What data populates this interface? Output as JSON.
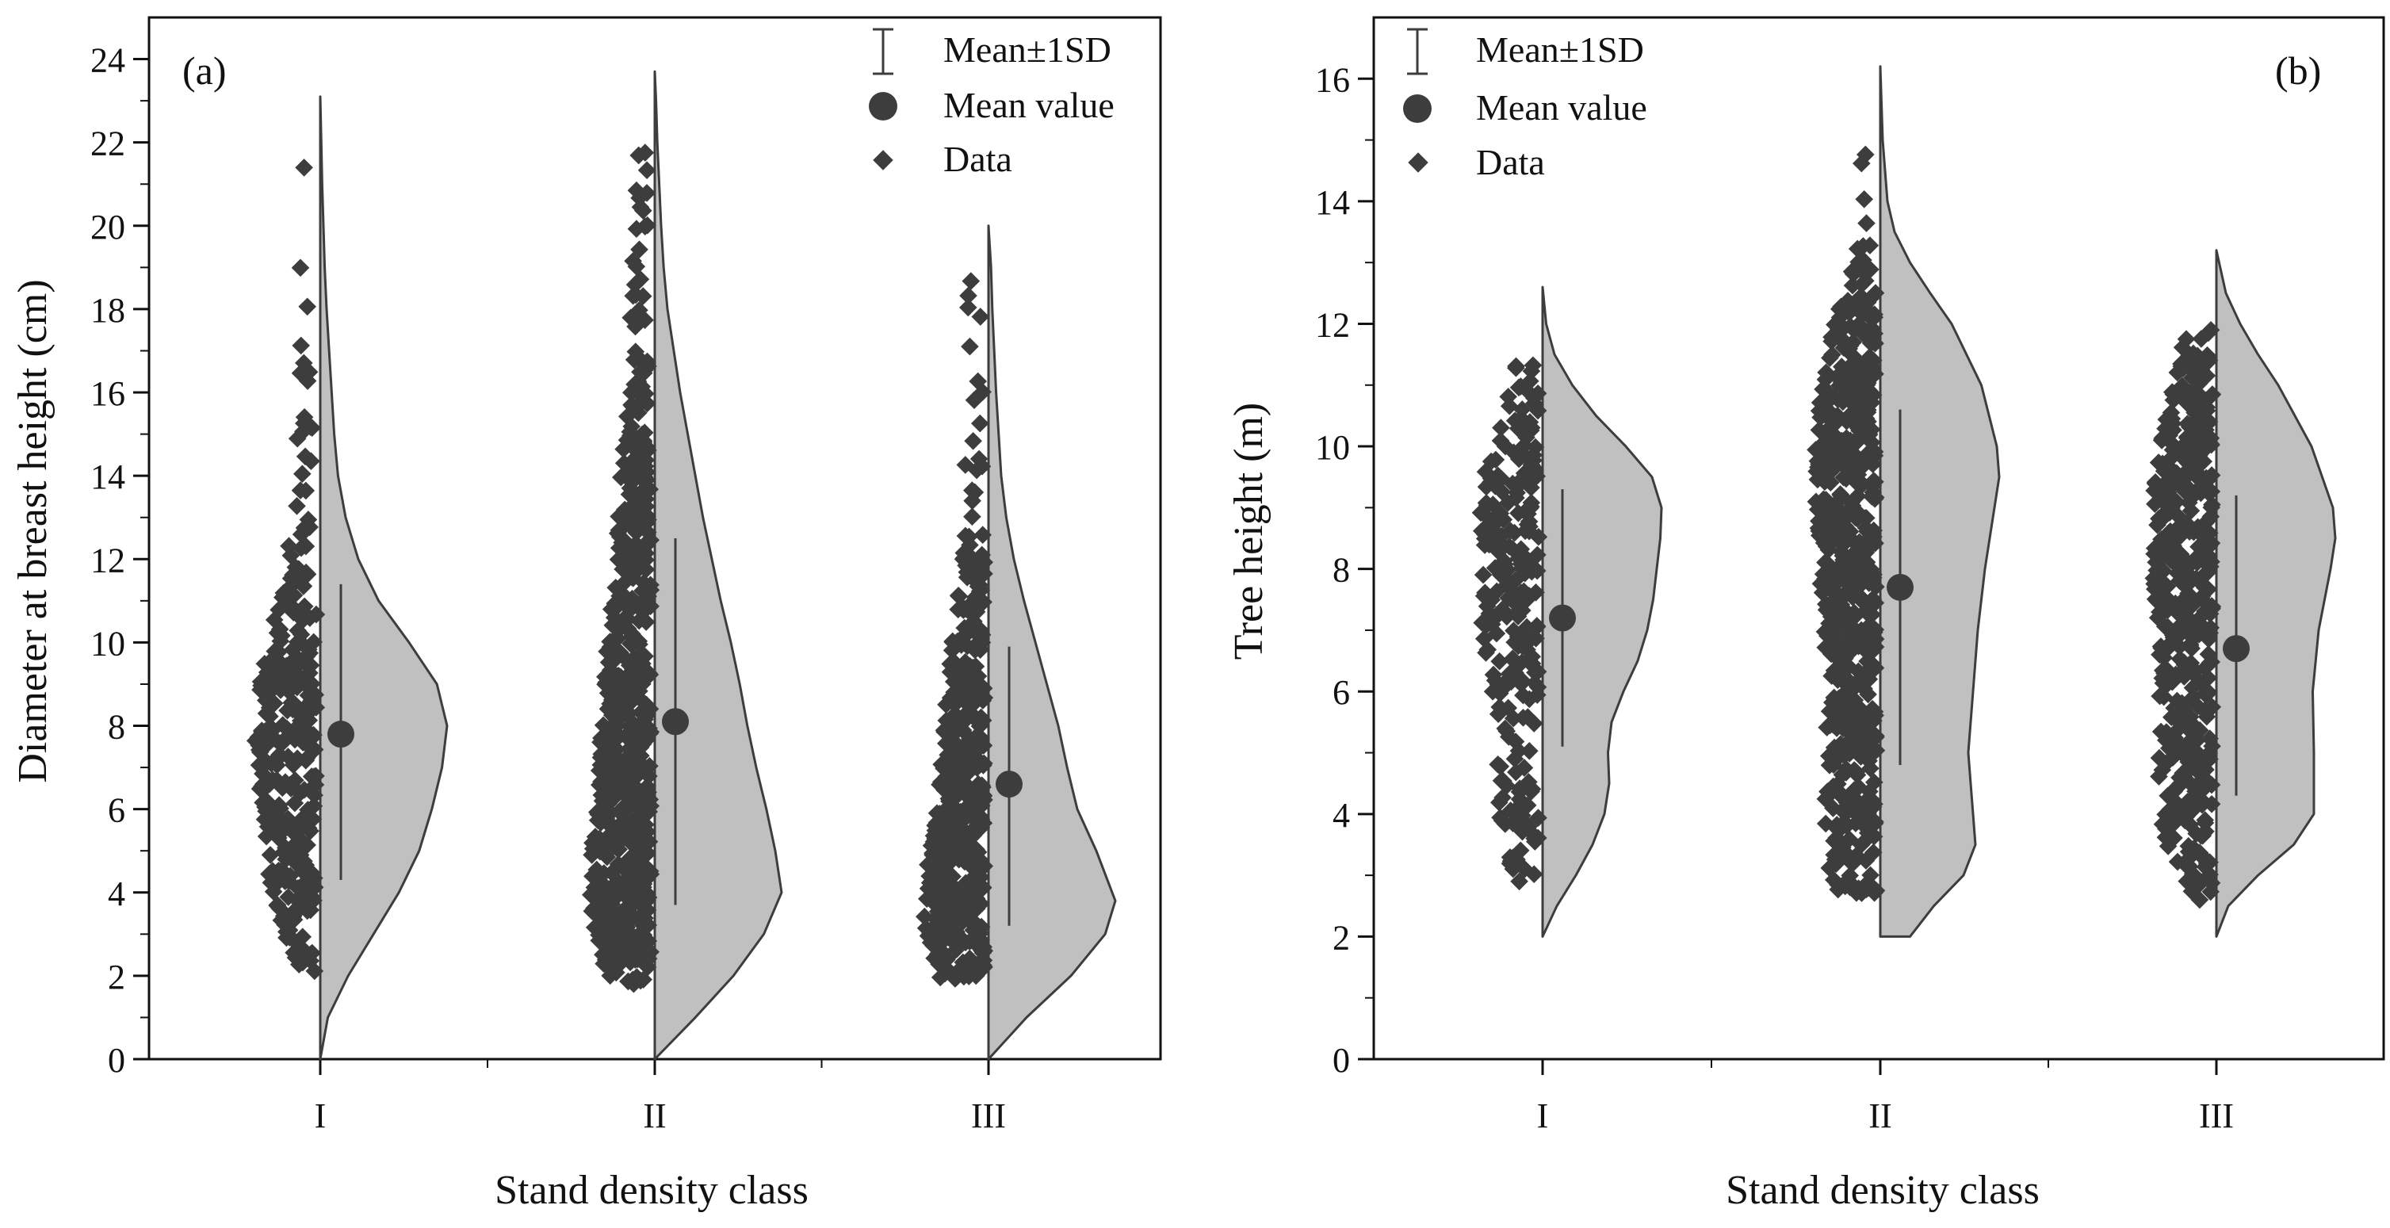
{
  "colors": {
    "point": "#3d3d3d",
    "violin_fill": "#c0c0c0",
    "violin_stroke": "#3d3d3d",
    "axis": "#111111",
    "background": "#ffffff"
  },
  "legend_labels": {
    "sd": "Mean±1SD",
    "mean": "Mean value",
    "data": "Data"
  },
  "chart_data": [
    {
      "type": "half-violin",
      "panel_label": "(a)",
      "title": "",
      "xlabel": "Stand density class",
      "ylabel": "Diameter at breast height (cm)",
      "ylim": [
        0,
        25
      ],
      "yticks": [
        0,
        2,
        4,
        6,
        8,
        10,
        12,
        14,
        16,
        18,
        20,
        22,
        24
      ],
      "grid": false,
      "legend_position": "top-right",
      "categories": [
        "I",
        "II",
        "III"
      ],
      "series": [
        {
          "name": "I",
          "mean": 7.8,
          "sd_low": 4.3,
          "sd_high": 11.4,
          "data_min": 2.1,
          "data_max": 21.7,
          "n_points": 320,
          "violin_min": 0,
          "violin_max": 23.1,
          "density": [
            [
              0,
              0.0
            ],
            [
              1,
              0.06
            ],
            [
              2,
              0.22
            ],
            [
              3,
              0.42
            ],
            [
              4,
              0.62
            ],
            [
              5,
              0.78
            ],
            [
              6,
              0.88
            ],
            [
              7,
              0.96
            ],
            [
              8,
              1.0
            ],
            [
              9,
              0.92
            ],
            [
              10,
              0.7
            ],
            [
              11,
              0.46
            ],
            [
              12,
              0.3
            ],
            [
              13,
              0.2
            ],
            [
              14,
              0.14
            ],
            [
              15,
              0.11
            ],
            [
              16,
              0.09
            ],
            [
              17,
              0.07
            ],
            [
              18,
              0.05
            ],
            [
              19,
              0.035
            ],
            [
              20,
              0.025
            ],
            [
              21,
              0.015
            ],
            [
              22,
              0.008
            ],
            [
              23.1,
              0.0
            ]
          ]
        },
        {
          "name": "II",
          "mean": 8.1,
          "sd_low": 3.7,
          "sd_high": 12.5,
          "data_min": 1.8,
          "data_max": 21.9,
          "n_points": 640,
          "violin_min": 0,
          "violin_max": 23.7,
          "density": [
            [
              0,
              0.0
            ],
            [
              1,
              0.32
            ],
            [
              2,
              0.62
            ],
            [
              3,
              0.86
            ],
            [
              4,
              1.0
            ],
            [
              5,
              0.95
            ],
            [
              6,
              0.88
            ],
            [
              7,
              0.8
            ],
            [
              8,
              0.73
            ],
            [
              9,
              0.67
            ],
            [
              10,
              0.6
            ],
            [
              11,
              0.52
            ],
            [
              12,
              0.45
            ],
            [
              13,
              0.38
            ],
            [
              14,
              0.32
            ],
            [
              15,
              0.26
            ],
            [
              16,
              0.2
            ],
            [
              17,
              0.15
            ],
            [
              18,
              0.1
            ],
            [
              19,
              0.07
            ],
            [
              20,
              0.05
            ],
            [
              21,
              0.035
            ],
            [
              22,
              0.02
            ],
            [
              23,
              0.01
            ],
            [
              23.7,
              0.0
            ]
          ]
        },
        {
          "name": "III",
          "mean": 6.6,
          "sd_low": 3.2,
          "sd_high": 9.9,
          "data_min": 1.9,
          "data_max": 18.9,
          "n_points": 480,
          "violin_min": 0,
          "violin_max": 20.0,
          "density": [
            [
              0,
              0.0
            ],
            [
              1,
              0.3
            ],
            [
              2,
              0.65
            ],
            [
              3,
              0.92
            ],
            [
              3.8,
              1.0
            ],
            [
              5,
              0.85
            ],
            [
              6,
              0.7
            ],
            [
              7,
              0.62
            ],
            [
              8,
              0.55
            ],
            [
              9,
              0.46
            ],
            [
              10,
              0.37
            ],
            [
              11,
              0.28
            ],
            [
              12,
              0.2
            ],
            [
              13,
              0.14
            ],
            [
              14,
              0.1
            ],
            [
              15,
              0.08
            ],
            [
              16,
              0.06
            ],
            [
              17,
              0.045
            ],
            [
              18,
              0.03
            ],
            [
              19,
              0.02
            ],
            [
              20,
              0.0
            ]
          ]
        }
      ]
    },
    {
      "type": "half-violin",
      "panel_label": "(b)",
      "title": "",
      "xlabel": "Stand density class",
      "ylabel": "Tree height (m)",
      "ylim": [
        0,
        17
      ],
      "yticks": [
        0,
        2,
        4,
        6,
        8,
        10,
        12,
        14,
        16
      ],
      "grid": false,
      "legend_position": "top-left",
      "categories": [
        "I",
        "II",
        "III"
      ],
      "series": [
        {
          "name": "I",
          "mean": 7.2,
          "sd_low": 5.1,
          "sd_high": 9.3,
          "data_min": 2.9,
          "data_max": 11.4,
          "n_points": 260,
          "violin_min": 2.0,
          "violin_max": 12.6,
          "density": [
            [
              2.0,
              0.0
            ],
            [
              2.5,
              0.12
            ],
            [
              3,
              0.28
            ],
            [
              3.5,
              0.42
            ],
            [
              4,
              0.52
            ],
            [
              4.5,
              0.56
            ],
            [
              5,
              0.55
            ],
            [
              5.5,
              0.58
            ],
            [
              6,
              0.68
            ],
            [
              6.5,
              0.8
            ],
            [
              7,
              0.88
            ],
            [
              7.5,
              0.93
            ],
            [
              8,
              0.96
            ],
            [
              8.5,
              0.99
            ],
            [
              9,
              1.0
            ],
            [
              9.5,
              0.92
            ],
            [
              10,
              0.7
            ],
            [
              10.5,
              0.45
            ],
            [
              11,
              0.25
            ],
            [
              11.5,
              0.1
            ],
            [
              12,
              0.03
            ],
            [
              12.6,
              0.0
            ]
          ]
        },
        {
          "name": "II",
          "mean": 7.7,
          "sd_low": 4.8,
          "sd_high": 10.6,
          "data_min": 2.7,
          "data_max": 15.0,
          "n_points": 600,
          "violin_min": 2.0,
          "violin_max": 16.2,
          "density": [
            [
              2.0,
              0.25
            ],
            [
              2.5,
              0.45
            ],
            [
              3,
              0.7
            ],
            [
              3.5,
              0.8
            ],
            [
              4,
              0.78
            ],
            [
              5,
              0.74
            ],
            [
              6,
              0.78
            ],
            [
              7,
              0.82
            ],
            [
              8,
              0.88
            ],
            [
              9,
              0.96
            ],
            [
              9.5,
              1.0
            ],
            [
              10,
              0.98
            ],
            [
              11,
              0.85
            ],
            [
              12,
              0.6
            ],
            [
              12.5,
              0.42
            ],
            [
              13,
              0.25
            ],
            [
              13.5,
              0.12
            ],
            [
              14,
              0.06
            ],
            [
              15,
              0.02
            ],
            [
              16.2,
              0.0
            ]
          ]
        },
        {
          "name": "III",
          "mean": 6.7,
          "sd_low": 4.3,
          "sd_high": 9.2,
          "data_min": 2.6,
          "data_max": 12.1,
          "n_points": 480,
          "violin_min": 2.0,
          "violin_max": 13.2,
          "density": [
            [
              2.0,
              0.0
            ],
            [
              2.5,
              0.1
            ],
            [
              3,
              0.35
            ],
            [
              3.5,
              0.65
            ],
            [
              4,
              0.82
            ],
            [
              5,
              0.82
            ],
            [
              6,
              0.81
            ],
            [
              7,
              0.86
            ],
            [
              8,
              0.96
            ],
            [
              8.5,
              1.0
            ],
            [
              9,
              0.98
            ],
            [
              10,
              0.8
            ],
            [
              11,
              0.52
            ],
            [
              11.5,
              0.35
            ],
            [
              12,
              0.2
            ],
            [
              12.5,
              0.08
            ],
            [
              13.2,
              0.0
            ]
          ]
        }
      ]
    }
  ]
}
